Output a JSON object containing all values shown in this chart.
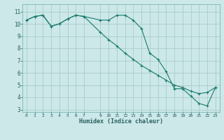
{
  "title": "",
  "xlabel": "Humidex (Indice chaleur)",
  "background_color": "#cce8e8",
  "grid_color": "#aacccc",
  "line_color": "#1a7a6e",
  "ylim": [
    2.8,
    11.6
  ],
  "xlim": [
    -0.5,
    23.5
  ],
  "series1_x": [
    0,
    1,
    2,
    3,
    4,
    5,
    6,
    7,
    9,
    10,
    11,
    12,
    13,
    14,
    15,
    16,
    17,
    18,
    19,
    20,
    21,
    22,
    23
  ],
  "series1_y": [
    10.3,
    10.6,
    10.7,
    9.8,
    10.0,
    10.4,
    10.7,
    10.6,
    10.3,
    10.3,
    10.7,
    10.7,
    10.3,
    9.6,
    7.6,
    7.1,
    6.1,
    4.7,
    4.7,
    4.1,
    3.5,
    3.3,
    4.8
  ],
  "series2_x": [
    0,
    1,
    2,
    3,
    4,
    5,
    6,
    7,
    9,
    10,
    11,
    12,
    13,
    14,
    15,
    16,
    17,
    18,
    19,
    20,
    21,
    22,
    23
  ],
  "series2_y": [
    10.3,
    10.6,
    10.7,
    9.8,
    10.0,
    10.4,
    10.7,
    10.6,
    9.3,
    8.7,
    8.2,
    7.6,
    7.1,
    6.6,
    6.2,
    5.8,
    5.4,
    5.0,
    4.8,
    4.5,
    4.3,
    4.4,
    4.8
  ],
  "x_tick_positions": [
    0,
    1,
    2,
    3,
    4,
    5,
    6,
    7,
    9,
    10,
    11,
    12,
    13,
    14,
    15,
    16,
    17,
    18,
    19,
    20,
    21,
    22,
    23
  ],
  "x_tick_labels": [
    "0",
    "1",
    "2",
    "3",
    "4",
    "5",
    "6",
    "7",
    "9",
    "10",
    "11",
    "12",
    "13",
    "14",
    "15",
    "16",
    "17",
    "18",
    "19",
    "20",
    "21",
    "22",
    "23"
  ],
  "y_ticks": [
    3,
    4,
    5,
    6,
    7,
    8,
    9,
    10,
    11
  ]
}
